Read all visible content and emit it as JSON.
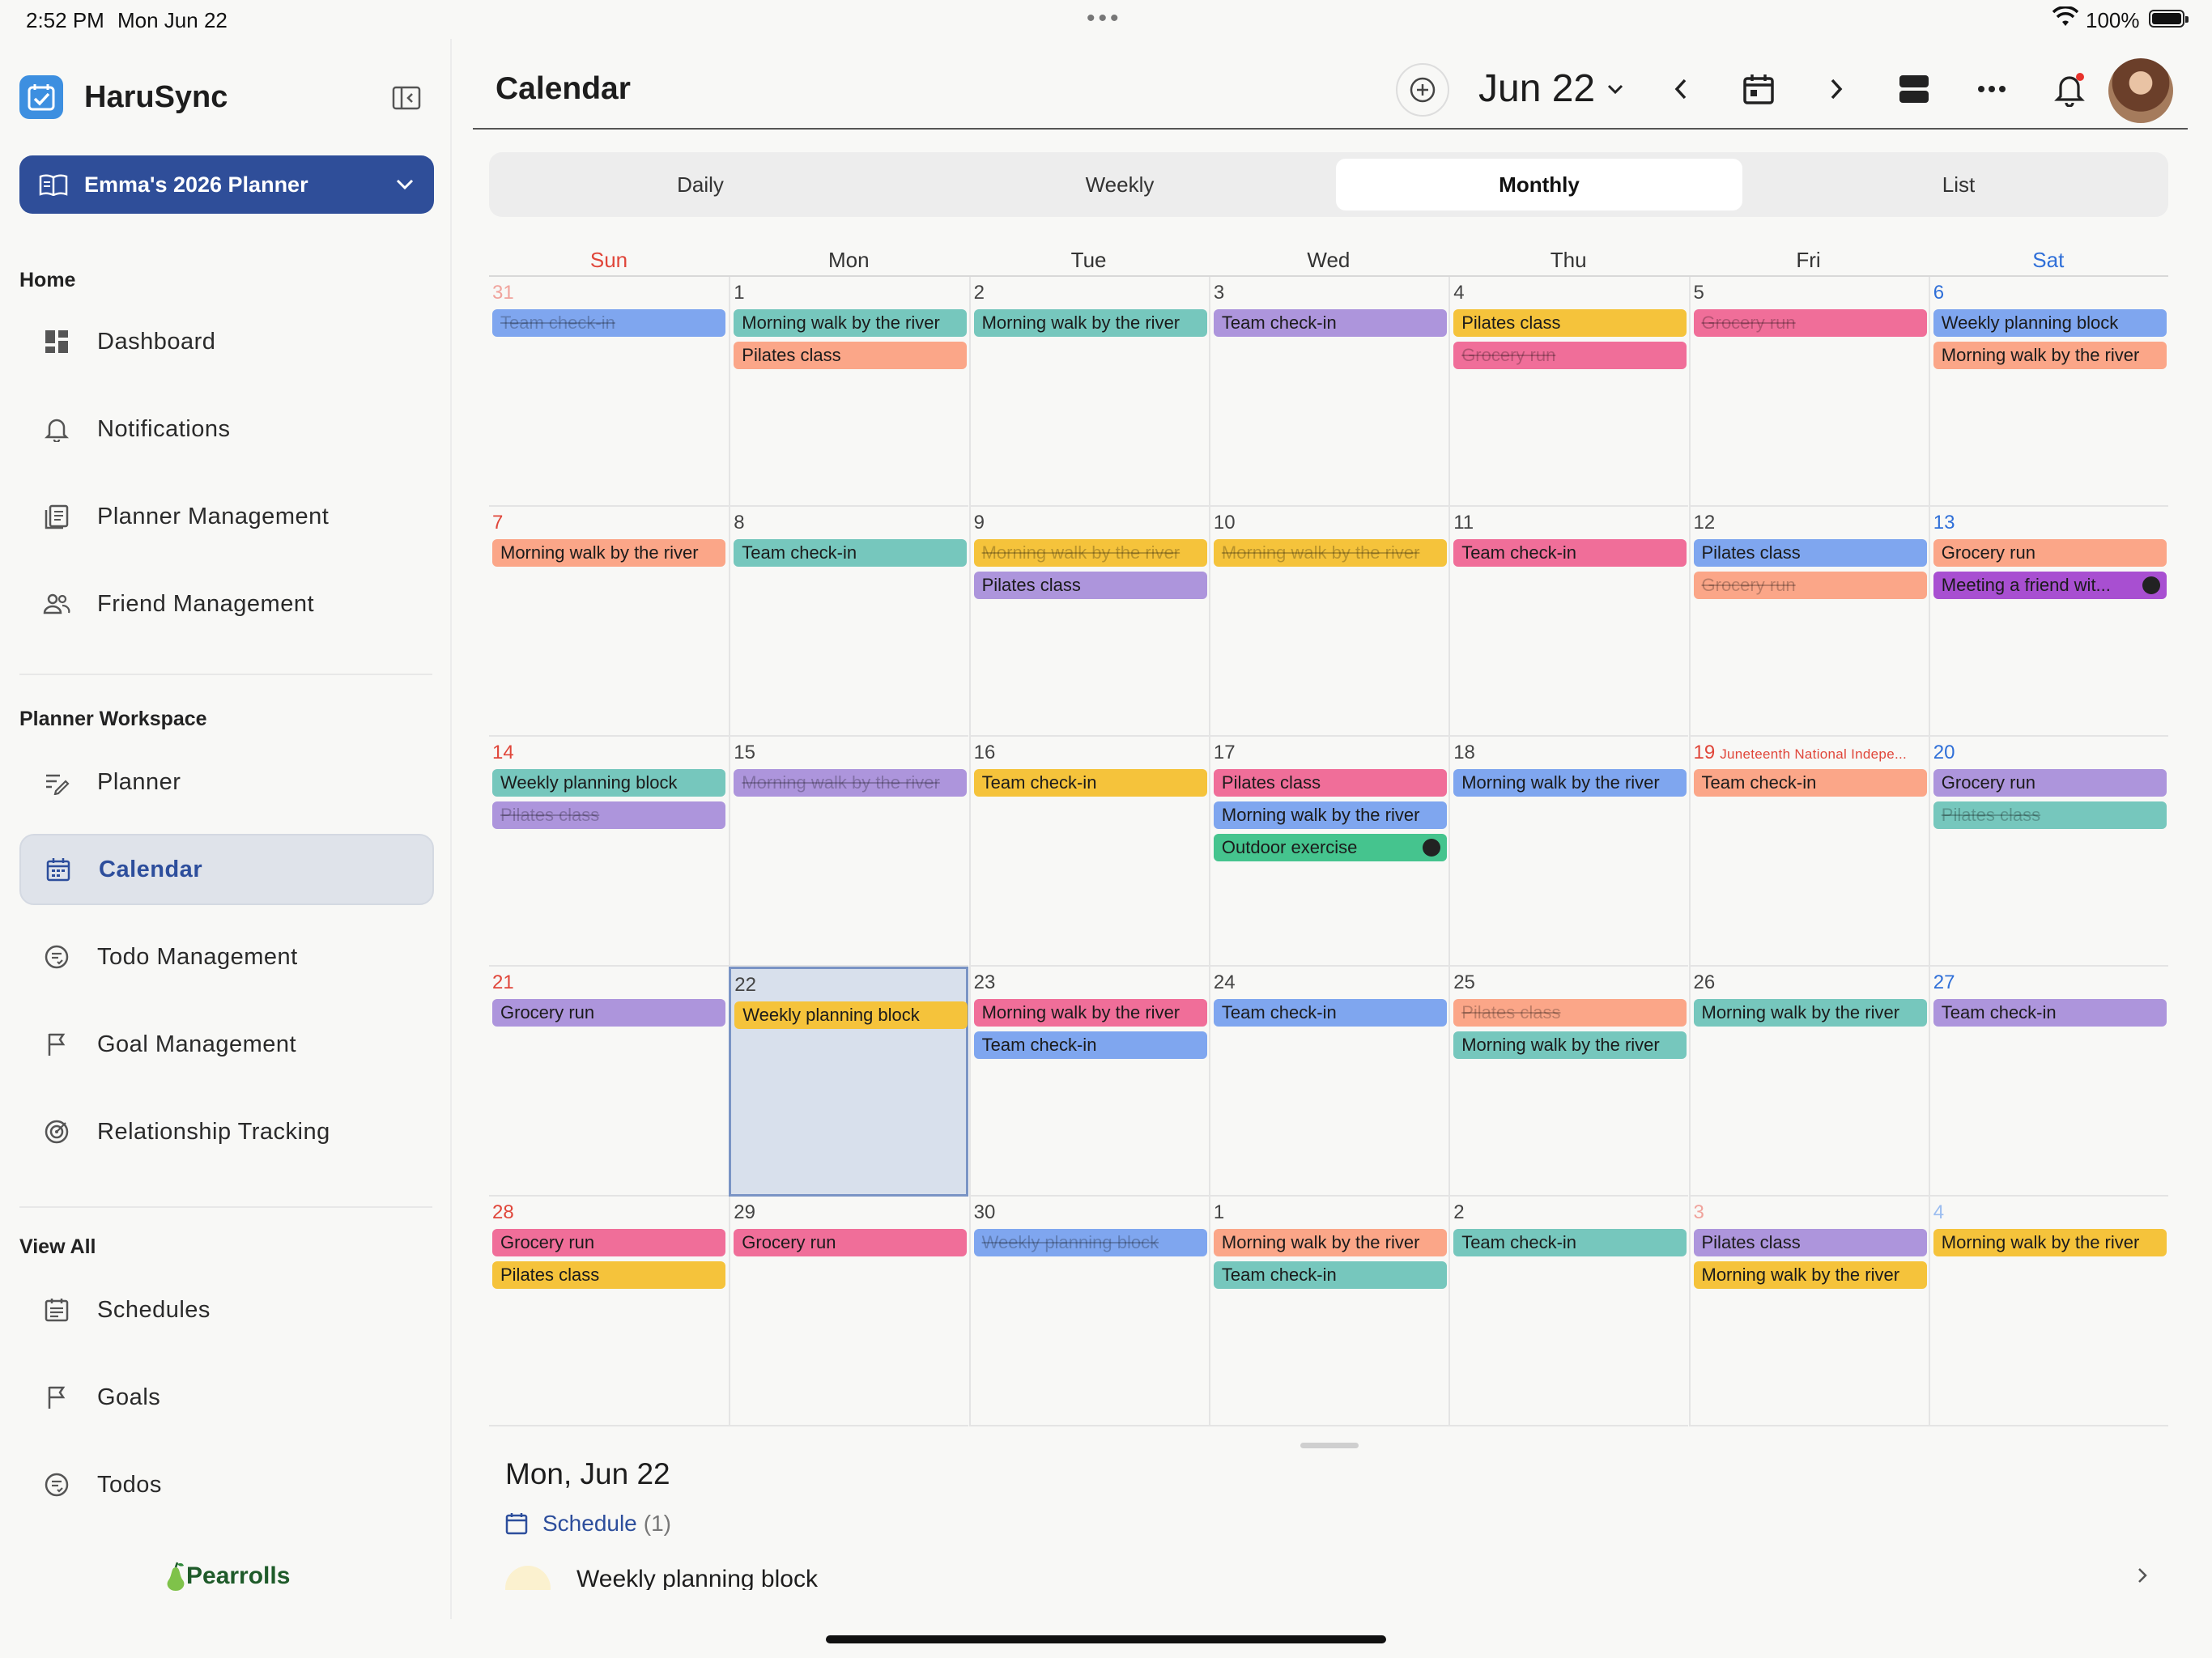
{
  "status": {
    "time": "2:52 PM",
    "date": "Mon Jun 22",
    "battery": "100%"
  },
  "sidebar": {
    "brand": "HaruSync",
    "planner": "Emma's 2026 Planner",
    "sections": {
      "home": "Home",
      "workspace": "Planner Workspace",
      "view_all": "View All"
    },
    "home_items": [
      {
        "label": "Dashboard"
      },
      {
        "label": "Notifications"
      },
      {
        "label": "Planner Management"
      },
      {
        "label": "Friend Management"
      }
    ],
    "workspace_items": [
      {
        "label": "Planner"
      },
      {
        "label": "Calendar"
      },
      {
        "label": "Todo Management"
      },
      {
        "label": "Goal Management"
      },
      {
        "label": "Relationship Tracking"
      }
    ],
    "viewall_items": [
      {
        "label": "Schedules"
      },
      {
        "label": "Goals"
      },
      {
        "label": "Todos"
      }
    ],
    "footer": "Pearrolls"
  },
  "header": {
    "title": "Calendar",
    "month": "Jun 22"
  },
  "tabs": [
    {
      "label": "Daily"
    },
    {
      "label": "Weekly"
    },
    {
      "label": "Monthly",
      "active": true
    },
    {
      "label": "List"
    }
  ],
  "calendar": {
    "weekdays": [
      "Sun",
      "Mon",
      "Tue",
      "Wed",
      "Thu",
      "Fri",
      "Sat"
    ],
    "weeks": [
      [
        {
          "d": "31",
          "faded": true,
          "events": [
            {
              "t": "Team check-in",
              "c": "#7fa6ef",
              "done": true
            }
          ]
        },
        {
          "d": "1",
          "events": [
            {
              "t": "Morning walk by the river",
              "c": "#76c7bd"
            },
            {
              "t": "Pilates class",
              "c": "#fba688"
            }
          ]
        },
        {
          "d": "2",
          "events": [
            {
              "t": "Morning walk by the river",
              "c": "#76c7bd"
            }
          ]
        },
        {
          "d": "3",
          "events": [
            {
              "t": "Team check-in",
              "c": "#ad95dc"
            }
          ]
        },
        {
          "d": "4",
          "events": [
            {
              "t": "Pilates class",
              "c": "#f5c33b"
            },
            {
              "t": "Grocery run",
              "c": "#f06e99",
              "done": true
            }
          ]
        },
        {
          "d": "5",
          "events": [
            {
              "t": "Grocery run",
              "c": "#f06e99",
              "done": true
            }
          ]
        },
        {
          "d": "6",
          "events": [
            {
              "t": "Weekly planning block",
              "c": "#7fa6ef"
            },
            {
              "t": "Morning walk by the river",
              "c": "#fba688"
            }
          ]
        }
      ],
      [
        {
          "d": "7",
          "events": [
            {
              "t": "Morning walk by the river",
              "c": "#fba688"
            }
          ]
        },
        {
          "d": "8",
          "events": [
            {
              "t": "Team check-in",
              "c": "#76c7bd"
            }
          ]
        },
        {
          "d": "9",
          "events": [
            {
              "t": "Morning walk by the river",
              "c": "#f5c33b",
              "done": true
            },
            {
              "t": "Pilates class",
              "c": "#ad95dc"
            }
          ]
        },
        {
          "d": "10",
          "events": [
            {
              "t": "Morning walk by the river",
              "c": "#f5c33b",
              "done": true
            }
          ]
        },
        {
          "d": "11",
          "events": [
            {
              "t": "Team check-in",
              "c": "#f06e99"
            }
          ]
        },
        {
          "d": "12",
          "events": [
            {
              "t": "Pilates class",
              "c": "#7fa6ef"
            },
            {
              "t": "Grocery run",
              "c": "#fba688",
              "done": true
            }
          ]
        },
        {
          "d": "13",
          "events": [
            {
              "t": "Grocery run",
              "c": "#fba688"
            },
            {
              "t": "Meeting a friend wit...",
              "c": "#a84fd1",
              "badge": true
            }
          ]
        }
      ],
      [
        {
          "d": "14",
          "events": [
            {
              "t": "Weekly planning block",
              "c": "#76c7bd"
            },
            {
              "t": "Pilates class",
              "c": "#ad95dc",
              "done": true
            }
          ]
        },
        {
          "d": "15",
          "events": [
            {
              "t": "Morning walk by the river",
              "c": "#ad95dc",
              "done": true
            }
          ]
        },
        {
          "d": "16",
          "events": [
            {
              "t": "Team check-in",
              "c": "#f5c33b"
            }
          ]
        },
        {
          "d": "17",
          "events": [
            {
              "t": "Pilates class",
              "c": "#f06e99"
            },
            {
              "t": "Morning walk by the river",
              "c": "#7fa6ef"
            },
            {
              "t": "Outdoor exercise",
              "c": "#45c48e",
              "badge": true
            }
          ]
        },
        {
          "d": "18",
          "events": [
            {
              "t": "Morning walk by the river",
              "c": "#7fa6ef"
            }
          ]
        },
        {
          "d": "19",
          "holiday": "Juneteenth National Indepe...",
          "events": [
            {
              "t": "Team check-in",
              "c": "#fba688"
            }
          ]
        },
        {
          "d": "20",
          "events": [
            {
              "t": "Grocery run",
              "c": "#ad95dc"
            },
            {
              "t": "Pilates class",
              "c": "#76c7bd",
              "done": true
            }
          ]
        }
      ],
      [
        {
          "d": "21",
          "events": [
            {
              "t": "Grocery run",
              "c": "#ad95dc"
            }
          ]
        },
        {
          "d": "22",
          "today": true,
          "events": [
            {
              "t": "Weekly planning block",
              "c": "#f5c33b"
            }
          ]
        },
        {
          "d": "23",
          "events": [
            {
              "t": "Morning walk by the river",
              "c": "#f06e99"
            },
            {
              "t": "Team check-in",
              "c": "#7fa6ef"
            }
          ]
        },
        {
          "d": "24",
          "events": [
            {
              "t": "Team check-in",
              "c": "#7fa6ef"
            }
          ]
        },
        {
          "d": "25",
          "events": [
            {
              "t": "Pilates class",
              "c": "#fba688",
              "done": true
            },
            {
              "t": "Morning walk by the river",
              "c": "#76c7bd"
            }
          ]
        },
        {
          "d": "26",
          "events": [
            {
              "t": "Morning walk by the river",
              "c": "#76c7bd"
            }
          ]
        },
        {
          "d": "27",
          "events": [
            {
              "t": "Team check-in",
              "c": "#ad95dc"
            }
          ]
        }
      ],
      [
        {
          "d": "28",
          "events": [
            {
              "t": "Grocery run",
              "c": "#f06e99"
            },
            {
              "t": "Pilates class",
              "c": "#f5c33b"
            }
          ]
        },
        {
          "d": "29",
          "events": [
            {
              "t": "Grocery run",
              "c": "#f06e99"
            }
          ]
        },
        {
          "d": "30",
          "events": [
            {
              "t": "Weekly planning block",
              "c": "#7fa6ef",
              "done": true
            }
          ]
        },
        {
          "d": "1",
          "events": [
            {
              "t": "Morning walk by the river",
              "c": "#fba688"
            },
            {
              "t": "Team check-in",
              "c": "#76c7bd"
            }
          ]
        },
        {
          "d": "2",
          "events": [
            {
              "t": "Team check-in",
              "c": "#76c7bd"
            }
          ]
        },
        {
          "d": "3",
          "faded": true,
          "events": [
            {
              "t": "Pilates class",
              "c": "#ad95dc"
            },
            {
              "t": "Morning walk by the river",
              "c": "#f5c33b"
            }
          ]
        },
        {
          "d": "4",
          "faded": true,
          "events": [
            {
              "t": "Morning walk by the river",
              "c": "#f5c33b"
            }
          ]
        }
      ]
    ]
  },
  "detail": {
    "date": "Mon, Jun 22",
    "schedule_label": "Schedule",
    "schedule_count": "(1)",
    "items": [
      {
        "title": "Weekly planning block"
      }
    ]
  }
}
